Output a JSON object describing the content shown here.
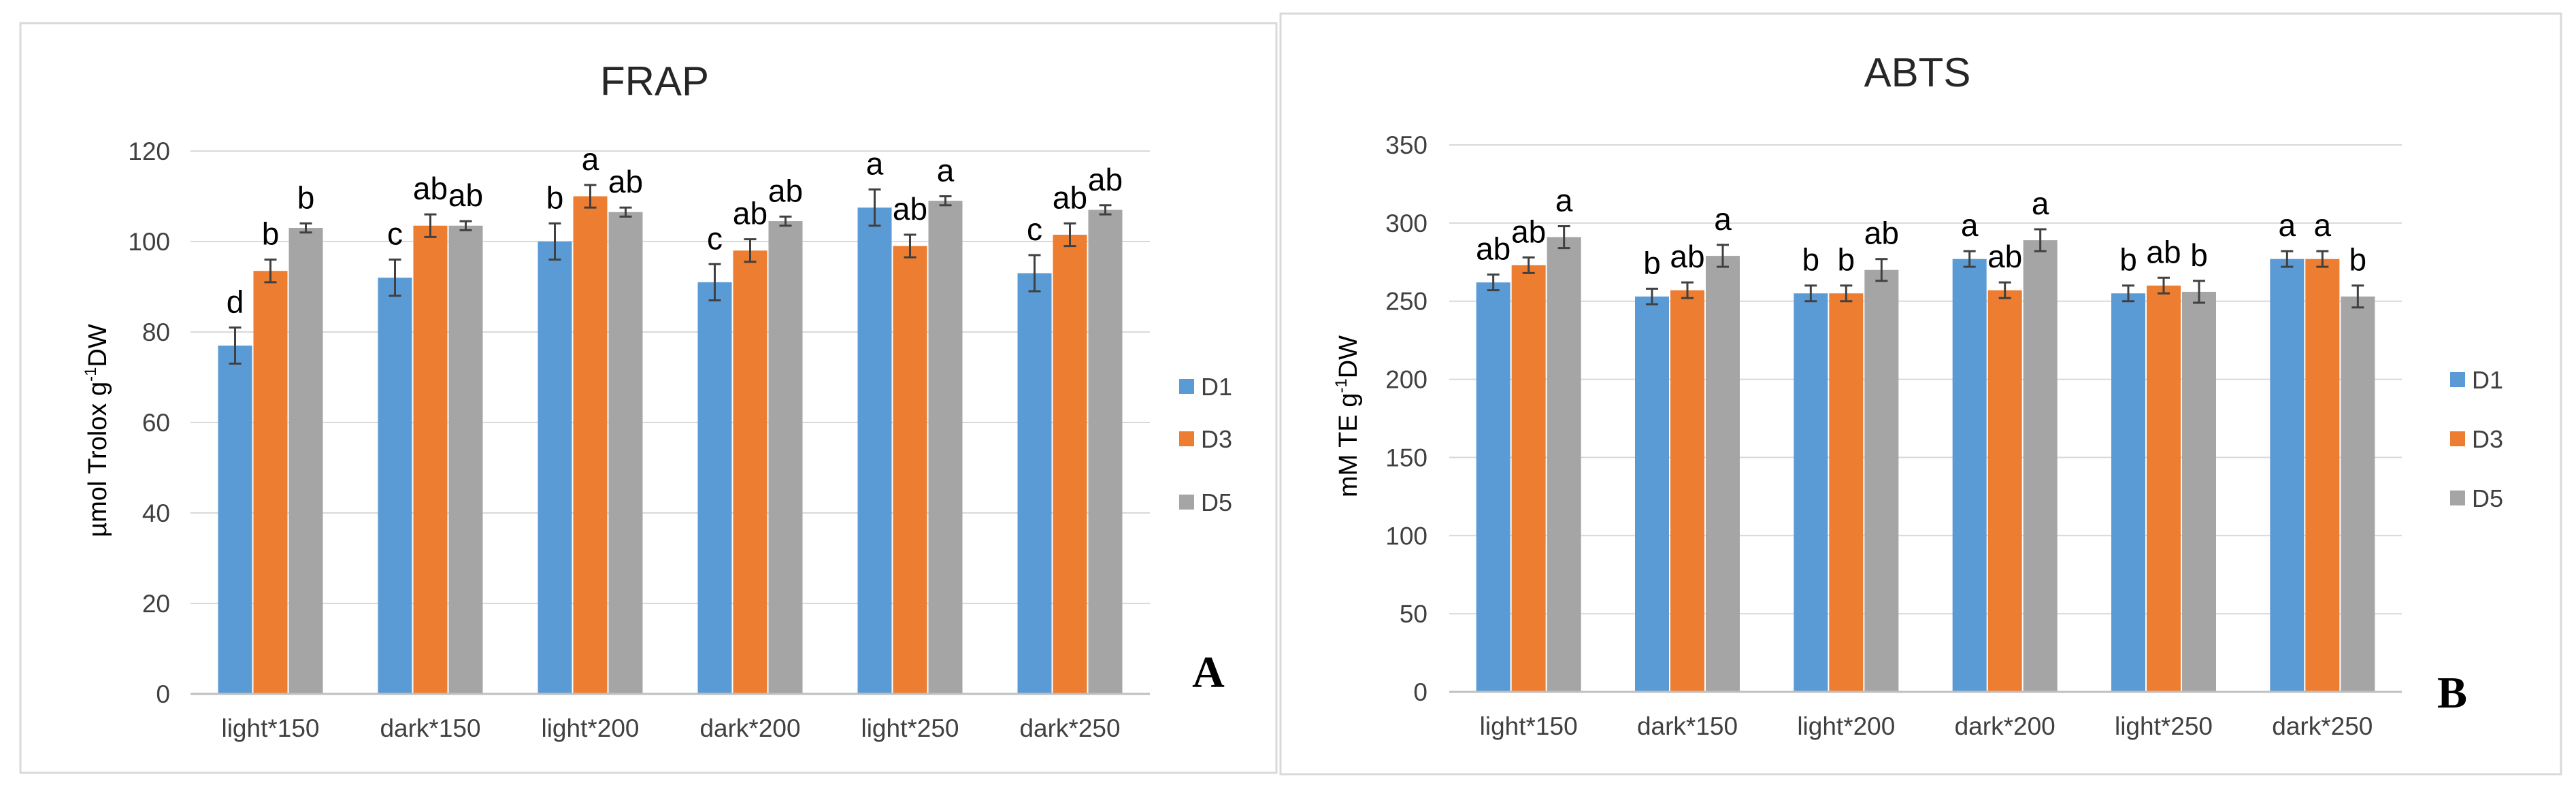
{
  "chart_data": [
    {
      "type": "bar",
      "panel": "A",
      "title": "FRAP",
      "ylabel_main": "µmol Trolox g",
      "ylabel_sup": "-1",
      "ylabel_end": "DW",
      "xlabel": "",
      "ylim": [
        0,
        120
      ],
      "yticks": [
        0,
        20,
        40,
        60,
        80,
        100,
        120
      ],
      "yticks_labels": [
        "0",
        "20",
        "40",
        "60",
        "80",
        "100",
        "120"
      ],
      "grid": true,
      "legend_position": "right",
      "categories": [
        "light*150",
        "dark*150",
        "light*200",
        "dark*200",
        "light*250",
        "dark*250"
      ],
      "series": [
        {
          "name": "D1",
          "color": "#5B9BD5",
          "values": [
            77,
            92,
            100,
            91,
            107.5,
            93
          ],
          "errors": [
            4,
            4,
            4,
            4,
            4,
            4
          ],
          "labels": [
            "d",
            "c",
            "b",
            "c",
            "a",
            "c"
          ]
        },
        {
          "name": "D3",
          "color": "#ED7D31",
          "values": [
            93.5,
            103.5,
            110,
            98,
            99,
            101.5
          ],
          "errors": [
            2.5,
            2.5,
            2.5,
            2.5,
            2.5,
            2.5
          ],
          "labels": [
            "b",
            "ab",
            "a",
            "ab",
            "ab",
            "ab"
          ]
        },
        {
          "name": "D5",
          "color": "#A5A5A5",
          "values": [
            103,
            103.5,
            106.5,
            104.5,
            109,
            107
          ],
          "errors": [
            1,
            1,
            1,
            1,
            1,
            1
          ],
          "labels": [
            "b",
            "ab",
            "ab",
            "ab",
            "a",
            "ab"
          ]
        }
      ]
    },
    {
      "type": "bar",
      "panel": "B",
      "title": "ABTS",
      "ylabel_main": "mM TE g",
      "ylabel_sup": "-1",
      "ylabel_end": "DW",
      "xlabel": "",
      "ylim": [
        0,
        350
      ],
      "yticks": [
        0,
        50,
        100,
        150,
        200,
        250,
        300,
        350
      ],
      "yticks_labels": [
        "0",
        "50",
        "100",
        "150",
        "200",
        "250",
        "300",
        "350"
      ],
      "grid": true,
      "legend_position": "right",
      "categories": [
        "light*150",
        "dark*150",
        "light*200",
        "dark*200",
        "light*250",
        "dark*250"
      ],
      "series": [
        {
          "name": "D1",
          "color": "#5B9BD5",
          "values": [
            262,
            253,
            255,
            277,
            255,
            277
          ],
          "errors": [
            5,
            5,
            5,
            5,
            5,
            5
          ],
          "labels": [
            "ab",
            "b",
            "b",
            "a",
            "b",
            "a"
          ]
        },
        {
          "name": "D3",
          "color": "#ED7D31",
          "values": [
            273,
            257,
            255,
            257,
            260,
            277
          ],
          "errors": [
            5,
            5,
            5,
            5,
            5,
            5
          ],
          "labels": [
            "ab",
            "ab",
            "b",
            "ab",
            "ab",
            "a"
          ]
        },
        {
          "name": "D5",
          "color": "#A5A5A5",
          "values": [
            291,
            279,
            270,
            289,
            256,
            253
          ],
          "errors": [
            7,
            7,
            7,
            7,
            7,
            7
          ],
          "labels": [
            "a",
            "a",
            "ab",
            "a",
            "b",
            "b"
          ]
        }
      ]
    }
  ]
}
